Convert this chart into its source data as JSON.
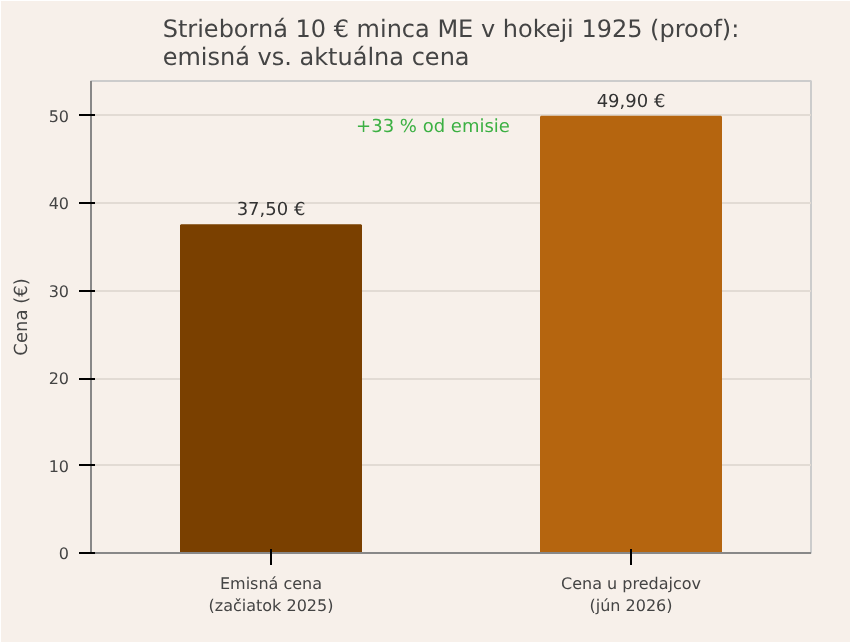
{
  "chart_data": {
    "type": "bar",
    "title": "Strieborná 10 € minca ME v hokeji 1925 (proof):\nemisná vs. aktuálna cena",
    "ylabel": "Cena (€)",
    "categories": [
      "Emisná cena\n(začiatok 2025)",
      "Cena u predajcov\n(jún 2026)"
    ],
    "values": [
      37.5,
      49.9
    ],
    "colors": [
      "#7a4000",
      "#b5650f"
    ],
    "value_labels": [
      "37,50 €",
      "49,90 €"
    ],
    "annotations": [
      "+33 % od emisie"
    ],
    "ylim": [
      0,
      54
    ],
    "yticks": [
      0,
      10,
      20,
      30,
      40,
      50
    ],
    "grid": "y"
  }
}
